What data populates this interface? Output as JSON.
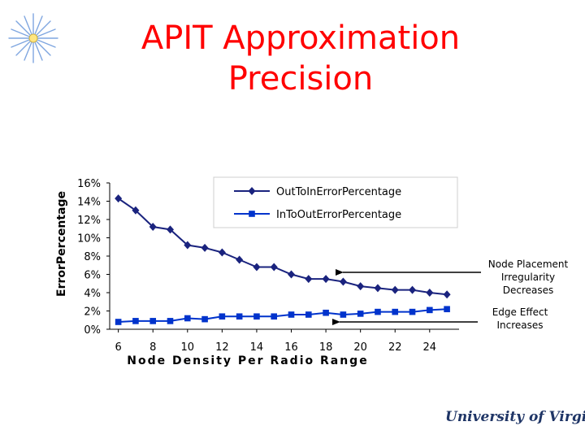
{
  "slide": {
    "title_line1": "APIT Approximation",
    "title_line2": "Precision",
    "title_color": "#ff0000",
    "decoration_icon": "starburst-icon",
    "annotations": [
      {
        "text_lines": [
          "Node Placement",
          "Irregularity",
          "Decreases"
        ],
        "points_to_series": "OutToInErrorPercentage"
      },
      {
        "text_lines": [
          "Edge Effect",
          "Increases"
        ],
        "points_to_series": "InToOutErrorPercentage"
      }
    ],
    "logo_text": "University of Virginia",
    "logo_color": "#1f3566"
  },
  "chart_data": {
    "type": "line",
    "xlabel": "Node Density Per Radio Range",
    "ylabel": "ErrorPercentage",
    "x": [
      6,
      7,
      8,
      9,
      10,
      11,
      12,
      13,
      14,
      15,
      16,
      17,
      18,
      19,
      20,
      21,
      22,
      23,
      24,
      25
    ],
    "x_tick_labels": [
      "6",
      "8",
      "10",
      "12",
      "14",
      "16",
      "18",
      "20",
      "22",
      "24"
    ],
    "x_tick_values": [
      6,
      8,
      10,
      12,
      14,
      16,
      18,
      20,
      22,
      24
    ],
    "y_tick_labels": [
      "0%",
      "2%",
      "4%",
      "6%",
      "8%",
      "10%",
      "12%",
      "14%",
      "16%"
    ],
    "y_tick_values": [
      0,
      2,
      4,
      6,
      8,
      10,
      12,
      14,
      16
    ],
    "ylim": [
      0,
      16
    ],
    "xlim": [
      5.5,
      25.7
    ],
    "grid": false,
    "legend_position": "top-right",
    "series": [
      {
        "name": "OutToInErrorPercentage",
        "color": "#1a237e",
        "marker": "diamond",
        "values": [
          14.3,
          13.0,
          11.2,
          10.9,
          9.2,
          8.9,
          8.4,
          7.6,
          6.8,
          6.8,
          6.0,
          5.5,
          5.5,
          5.2,
          4.7,
          4.5,
          4.3,
          4.3,
          4.0,
          3.8
        ]
      },
      {
        "name": "InToOutErrorPercentage",
        "color": "#0033cc",
        "marker": "square",
        "values": [
          0.8,
          0.9,
          0.9,
          0.9,
          1.2,
          1.1,
          1.4,
          1.4,
          1.4,
          1.4,
          1.6,
          1.6,
          1.8,
          1.6,
          1.7,
          1.9,
          1.9,
          1.9,
          2.1,
          2.2
        ]
      }
    ]
  }
}
